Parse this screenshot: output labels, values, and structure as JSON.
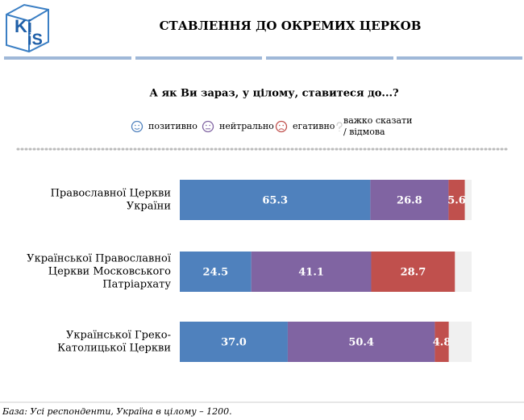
{
  "logo": [
    "Ki",
    "iS"
  ],
  "chart_data": {
    "type": "stacked-bar-horizontal",
    "title": "СТАВЛЕННЯ ДО ОКРЕМИХ ЦЕРКОВ",
    "subtitle": "А як Ви зараз, у цілому, ставитеся до...?",
    "categories": [
      [
        "Православної Церкви",
        "України"
      ],
      [
        "Української Православної",
        "Церкви Московського",
        "Патріархату"
      ],
      [
        "Української Греко-",
        "Католицької Церкви"
      ]
    ],
    "series": [
      {
        "name": "позитивно",
        "color": "#4f81bd",
        "values": [
          65.3,
          24.5,
          37.0
        ],
        "value_labels": [
          "65.3",
          "24.5",
          "37.0"
        ]
      },
      {
        "name": "нейтрально",
        "color": "#8064a2",
        "values": [
          26.8,
          41.1,
          50.4
        ]
      },
      {
        "name": "егативно",
        "color": "#c0504d",
        "values": [
          5.6,
          28.7,
          4.8
        ]
      },
      {
        "name": "важко сказати / відмова",
        "color": "#f0f0f0",
        "values": [
          2.3,
          5.7,
          7.8
        ],
        "labels_shown": false
      }
    ],
    "footnote": "База: Усі респонденти, Україна в цілому – 1200."
  }
}
